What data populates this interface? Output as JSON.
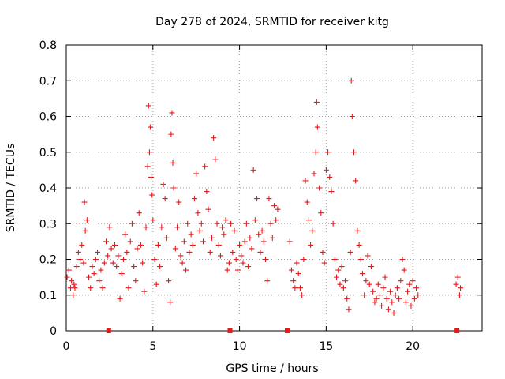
{
  "chart_data": {
    "type": "scatter",
    "title": "Day 278 of 2024, SRMTID for receiver kitg",
    "xlabel": "GPS time / hours",
    "ylabel": "SRMTID / TECUs",
    "xlim": [
      0,
      24
    ],
    "ylim": [
      0,
      0.8
    ],
    "xticks": [
      0,
      5,
      10,
      15,
      20
    ],
    "xtick_labels": [
      "0",
      "5",
      "10",
      "15",
      "20"
    ],
    "yticks": [
      0,
      0.1,
      0.2,
      0.3,
      0.4,
      0.5,
      0.6,
      0.7,
      0.8
    ],
    "ytick_labels": [
      "0",
      "0.1",
      "0.2",
      "0.3",
      "0.4",
      "0.5",
      "0.6",
      "0.7",
      "0.8"
    ],
    "grid": true,
    "marker_color": "#e31a1c",
    "series": [
      {
        "name": "SRMTID",
        "marker": "plus",
        "points": [
          [
            0.05,
            0.15
          ],
          [
            0.15,
            0.17
          ],
          [
            0.25,
            0.12
          ],
          [
            0.3,
            0.14
          ],
          [
            0.4,
            0.1
          ],
          [
            0.45,
            0.13
          ],
          [
            0.5,
            0.12
          ],
          [
            0.6,
            0.18
          ],
          [
            0.7,
            0.22
          ],
          [
            0.8,
            0.2
          ],
          [
            0.9,
            0.24
          ],
          [
            1.0,
            0.19
          ],
          [
            1.05,
            0.36
          ],
          [
            1.1,
            0.28
          ],
          [
            1.2,
            0.31
          ],
          [
            1.3,
            0.15
          ],
          [
            1.4,
            0.12
          ],
          [
            1.5,
            0.18
          ],
          [
            1.6,
            0.16
          ],
          [
            1.7,
            0.2
          ],
          [
            1.8,
            0.22
          ],
          [
            1.9,
            0.14
          ],
          [
            2.0,
            0.17
          ],
          [
            2.1,
            0.12
          ],
          [
            2.2,
            0.19
          ],
          [
            2.3,
            0.25
          ],
          [
            2.4,
            0.21
          ],
          [
            2.5,
            0.29
          ],
          [
            2.6,
            0.23
          ],
          [
            2.7,
            0.19
          ],
          [
            2.8,
            0.24
          ],
          [
            2.9,
            0.18
          ],
          [
            3.0,
            0.21
          ],
          [
            3.1,
            0.09
          ],
          [
            3.2,
            0.16
          ],
          [
            3.3,
            0.2
          ],
          [
            3.4,
            0.27
          ],
          [
            3.5,
            0.22
          ],
          [
            3.6,
            0.12
          ],
          [
            3.7,
            0.25
          ],
          [
            3.8,
            0.3
          ],
          [
            3.9,
            0.18
          ],
          [
            4.0,
            0.14
          ],
          [
            4.1,
            0.23
          ],
          [
            4.2,
            0.33
          ],
          [
            4.3,
            0.24
          ],
          [
            4.4,
            0.19
          ],
          [
            4.5,
            0.11
          ],
          [
            4.6,
            0.29
          ],
          [
            4.7,
            0.46
          ],
          [
            4.75,
            0.63
          ],
          [
            4.8,
            0.5
          ],
          [
            4.85,
            0.57
          ],
          [
            4.9,
            0.43
          ],
          [
            4.95,
            0.38
          ],
          [
            5.0,
            0.31
          ],
          [
            5.1,
            0.2
          ],
          [
            5.2,
            0.13
          ],
          [
            5.3,
            0.24
          ],
          [
            5.4,
            0.18
          ],
          [
            5.5,
            0.29
          ],
          [
            5.6,
            0.41
          ],
          [
            5.7,
            0.37
          ],
          [
            5.8,
            0.26
          ],
          [
            5.9,
            0.14
          ],
          [
            6.0,
            0.08
          ],
          [
            6.05,
            0.55
          ],
          [
            6.1,
            0.61
          ],
          [
            6.15,
            0.47
          ],
          [
            6.2,
            0.4
          ],
          [
            6.3,
            0.23
          ],
          [
            6.4,
            0.29
          ],
          [
            6.5,
            0.36
          ],
          [
            6.6,
            0.21
          ],
          [
            6.7,
            0.19
          ],
          [
            6.8,
            0.25
          ],
          [
            6.9,
            0.17
          ],
          [
            7.0,
            0.3
          ],
          [
            7.1,
            0.22
          ],
          [
            7.2,
            0.27
          ],
          [
            7.3,
            0.24
          ],
          [
            7.4,
            0.37
          ],
          [
            7.5,
            0.44
          ],
          [
            7.6,
            0.33
          ],
          [
            7.7,
            0.28
          ],
          [
            7.8,
            0.3
          ],
          [
            7.9,
            0.25
          ],
          [
            8.0,
            0.46
          ],
          [
            8.1,
            0.39
          ],
          [
            8.2,
            0.34
          ],
          [
            8.3,
            0.22
          ],
          [
            8.4,
            0.26
          ],
          [
            8.5,
            0.54
          ],
          [
            8.6,
            0.48
          ],
          [
            8.7,
            0.3
          ],
          [
            8.8,
            0.24
          ],
          [
            8.9,
            0.21
          ],
          [
            9.0,
            0.29
          ],
          [
            9.1,
            0.27
          ],
          [
            9.2,
            0.31
          ],
          [
            9.3,
            0.17
          ],
          [
            9.4,
            0.19
          ],
          [
            9.5,
            0.3
          ],
          [
            9.6,
            0.22
          ],
          [
            9.7,
            0.28
          ],
          [
            9.8,
            0.2
          ],
          [
            9.9,
            0.17
          ],
          [
            10.0,
            0.24
          ],
          [
            10.1,
            0.21
          ],
          [
            10.2,
            0.19
          ],
          [
            10.3,
            0.25
          ],
          [
            10.4,
            0.3
          ],
          [
            10.5,
            0.18
          ],
          [
            10.6,
            0.26
          ],
          [
            10.7,
            0.23
          ],
          [
            10.8,
            0.45
          ],
          [
            10.9,
            0.31
          ],
          [
            11.0,
            0.37
          ],
          [
            11.1,
            0.27
          ],
          [
            11.2,
            0.22
          ],
          [
            11.3,
            0.28
          ],
          [
            11.4,
            0.25
          ],
          [
            11.5,
            0.2
          ],
          [
            11.6,
            0.14
          ],
          [
            11.7,
            0.37
          ],
          [
            11.8,
            0.3
          ],
          [
            11.9,
            0.26
          ],
          [
            12.0,
            0.35
          ],
          [
            12.1,
            0.31
          ],
          [
            12.2,
            0.34
          ],
          [
            12.9,
            0.25
          ],
          [
            13.0,
            0.17
          ],
          [
            13.1,
            0.14
          ],
          [
            13.2,
            0.12
          ],
          [
            13.3,
            0.19
          ],
          [
            13.4,
            0.16
          ],
          [
            13.5,
            0.12
          ],
          [
            13.6,
            0.1
          ],
          [
            13.7,
            0.2
          ],
          [
            13.8,
            0.42
          ],
          [
            13.9,
            0.36
          ],
          [
            14.0,
            0.31
          ],
          [
            14.1,
            0.24
          ],
          [
            14.2,
            0.28
          ],
          [
            14.3,
            0.44
          ],
          [
            14.4,
            0.5
          ],
          [
            14.45,
            0.64
          ],
          [
            14.5,
            0.57
          ],
          [
            14.6,
            0.4
          ],
          [
            14.7,
            0.33
          ],
          [
            14.8,
            0.22
          ],
          [
            14.9,
            0.19
          ],
          [
            15.0,
            0.45
          ],
          [
            15.1,
            0.5
          ],
          [
            15.2,
            0.43
          ],
          [
            15.3,
            0.39
          ],
          [
            15.4,
            0.3
          ],
          [
            15.5,
            0.2
          ],
          [
            15.6,
            0.15
          ],
          [
            15.7,
            0.17
          ],
          [
            15.8,
            0.13
          ],
          [
            15.9,
            0.18
          ],
          [
            16.0,
            0.12
          ],
          [
            16.1,
            0.14
          ],
          [
            16.2,
            0.09
          ],
          [
            16.3,
            0.06
          ],
          [
            16.4,
            0.22
          ],
          [
            16.45,
            0.7
          ],
          [
            16.5,
            0.6
          ],
          [
            16.6,
            0.5
          ],
          [
            16.7,
            0.42
          ],
          [
            16.8,
            0.28
          ],
          [
            16.9,
            0.24
          ],
          [
            17.0,
            0.2
          ],
          [
            17.1,
            0.16
          ],
          [
            17.2,
            0.1
          ],
          [
            17.3,
            0.14
          ],
          [
            17.4,
            0.21
          ],
          [
            17.5,
            0.13
          ],
          [
            17.6,
            0.18
          ],
          [
            17.7,
            0.11
          ],
          [
            17.8,
            0.08
          ],
          [
            17.9,
            0.09
          ],
          [
            18.0,
            0.13
          ],
          [
            18.1,
            0.1
          ],
          [
            18.2,
            0.07
          ],
          [
            18.3,
            0.12
          ],
          [
            18.4,
            0.15
          ],
          [
            18.5,
            0.09
          ],
          [
            18.6,
            0.06
          ],
          [
            18.7,
            0.11
          ],
          [
            18.8,
            0.08
          ],
          [
            18.9,
            0.05
          ],
          [
            19.0,
            0.1
          ],
          [
            19.1,
            0.12
          ],
          [
            19.2,
            0.09
          ],
          [
            19.3,
            0.14
          ],
          [
            19.4,
            0.2
          ],
          [
            19.5,
            0.17
          ],
          [
            19.6,
            0.08
          ],
          [
            19.7,
            0.11
          ],
          [
            19.8,
            0.13
          ],
          [
            19.9,
            0.07
          ],
          [
            20.0,
            0.14
          ],
          [
            20.1,
            0.09
          ],
          [
            20.2,
            0.12
          ],
          [
            20.3,
            0.1
          ],
          [
            22.5,
            0.13
          ],
          [
            22.6,
            0.15
          ],
          [
            22.7,
            0.1
          ],
          [
            22.75,
            0.12
          ]
        ]
      },
      {
        "name": "baseline markers",
        "marker": "square",
        "points": [
          [
            2.45,
            0
          ],
          [
            9.45,
            0
          ],
          [
            12.75,
            0
          ],
          [
            22.55,
            0
          ]
        ]
      }
    ]
  }
}
